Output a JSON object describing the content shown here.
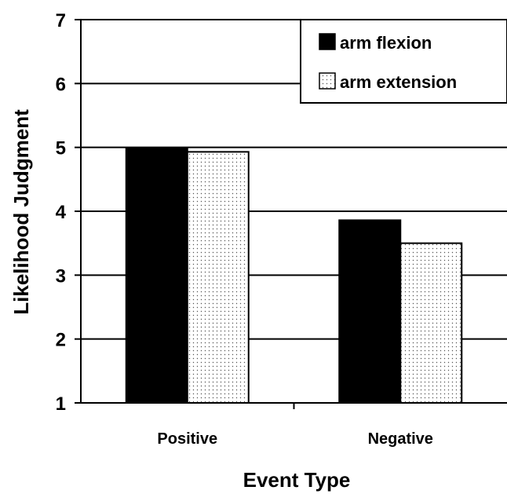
{
  "chart_data": {
    "type": "bar",
    "title": "",
    "xlabel": "Event Type",
    "ylabel": "Likelihood Judgment",
    "categories": [
      "Positive",
      "Negative"
    ],
    "series": [
      {
        "name": "arm flexion",
        "values": [
          4.99,
          3.86
        ],
        "color": "#000000",
        "pattern": "solid"
      },
      {
        "name": "arm extension",
        "values": [
          4.93,
          3.5
        ],
        "color": "#ffffff",
        "pattern": "dotted"
      }
    ],
    "ylim": [
      1,
      7
    ],
    "yticks": [
      1,
      2,
      3,
      4,
      5,
      6,
      7
    ],
    "grid": true,
    "legend": "top-right"
  }
}
